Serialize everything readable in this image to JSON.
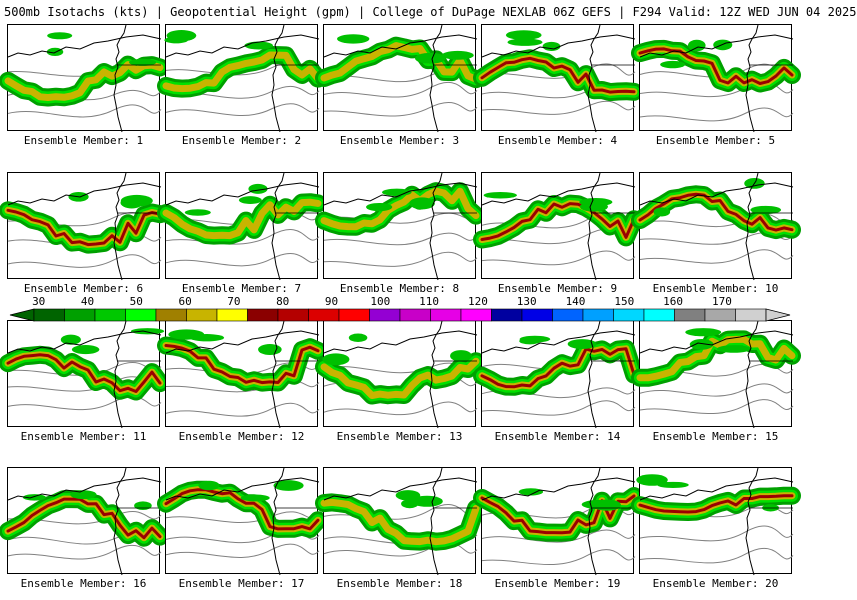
{
  "header": {
    "title": "500mb Isotachs (kts) | Geopotential Height (gpm) | College of DuPage NEXLAB   06Z GEFS | F294 Valid: 12Z WED JUN 04 2025"
  },
  "colors": {
    "map_line": "#000000",
    "height_contour": "#808080",
    "panel_border": "#000000"
  },
  "colorbar": {
    "ticks": [
      "30",
      "40",
      "50",
      "60",
      "70",
      "80",
      "90",
      "100",
      "110",
      "120",
      "130",
      "140",
      "150",
      "160",
      "170"
    ],
    "colors": [
      "#006400",
      "#00a000",
      "#00c800",
      "#00ff00",
      "#a08000",
      "#c8b400",
      "#ffff00",
      "#8b0000",
      "#b40000",
      "#dc0000",
      "#ff0000",
      "#9400d3",
      "#c800c8",
      "#e600e6",
      "#ff00ff",
      "#0000a0",
      "#0000e6",
      "#0064ff",
      "#00a0ff",
      "#00d7ff",
      "#00ffff",
      "#808080",
      "#a8a8a8",
      "#d0d0d0"
    ]
  },
  "members": [
    {
      "label": "Ensemble Member: 1",
      "max_band": 2
    },
    {
      "label": "Ensemble Member: 2",
      "max_band": 2
    },
    {
      "label": "Ensemble Member: 3",
      "max_band": 2
    },
    {
      "label": "Ensemble Member: 4",
      "max_band": 3
    },
    {
      "label": "Ensemble Member: 5",
      "max_band": 3
    },
    {
      "label": "Ensemble Member: 6",
      "max_band": 3
    },
    {
      "label": "Ensemble Member: 7",
      "max_band": 2
    },
    {
      "label": "Ensemble Member: 8",
      "max_band": 2
    },
    {
      "label": "Ensemble Member: 9",
      "max_band": 3
    },
    {
      "label": "Ensemble Member: 10",
      "max_band": 3
    },
    {
      "label": "Ensemble Member: 11",
      "max_band": 3
    },
    {
      "label": "Ensemble Member: 12",
      "max_band": 3
    },
    {
      "label": "Ensemble Member: 13",
      "max_band": 2
    },
    {
      "label": "Ensemble Member: 14",
      "max_band": 3
    },
    {
      "label": "Ensemble Member: 15",
      "max_band": 2
    },
    {
      "label": "Ensemble Member: 16",
      "max_band": 3
    },
    {
      "label": "Ensemble Member: 17",
      "max_band": 3
    },
    {
      "label": "Ensemble Member: 18",
      "max_band": 2
    },
    {
      "label": "Ensemble Member: 19",
      "max_band": 3
    },
    {
      "label": "Ensemble Member: 20",
      "max_band": 3
    }
  ]
}
